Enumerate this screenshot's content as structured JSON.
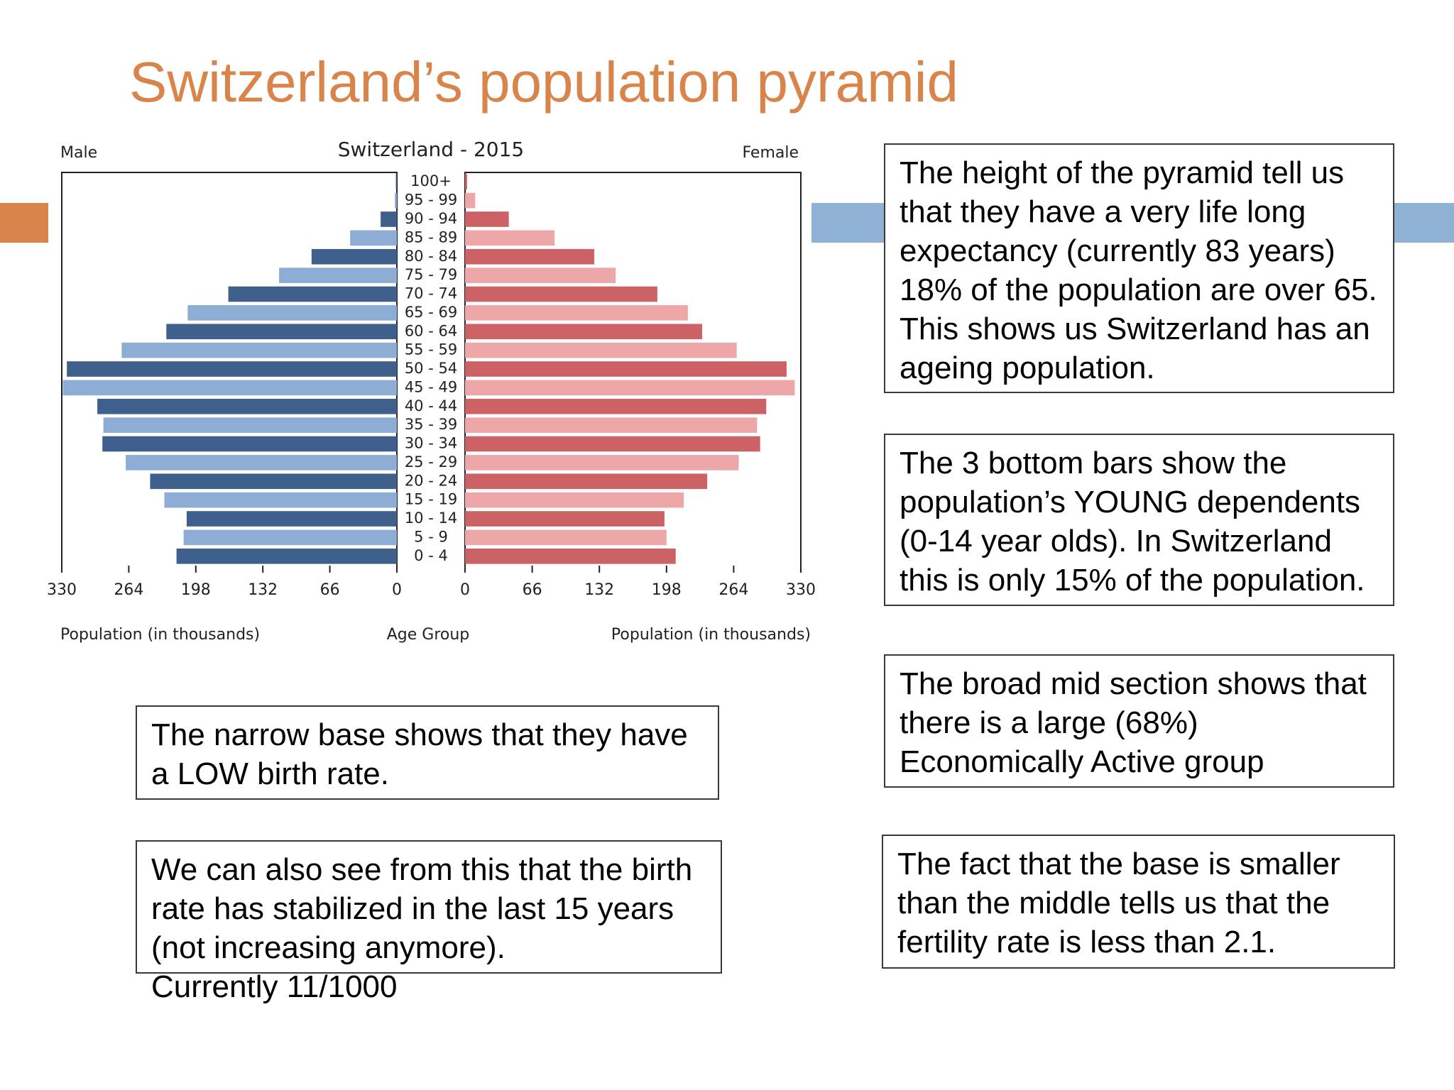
{
  "slide": {
    "title": "Switzerland’s population pyramid",
    "accent_left_color": "#d9844a",
    "accent_right_color": "#8fb1d3"
  },
  "notes": {
    "height": "The height of the pyramid tell us that they have a very life long expectancy (currently 83 years)\n18% of the population are over 65.\nThis shows us Switzerland has an ageing population.",
    "young": "The 3 bottom bars show the population’s YOUNG dependents (0-14 year olds). In Switzerland this is only 15% of the population.",
    "mid": "The broad mid section shows that there is a large (68%) Economically Active group",
    "base": "The narrow base shows that they have a LOW birth rate.",
    "birth": "We can also see from this that the birth rate has stabilized in the last 15 years (not increasing anymore).\nCurrently 11/1000",
    "fertility": "The fact that the base is smaller than the middle tells us that the fertility rate is less than 2.1."
  },
  "chart_data": {
    "type": "bar",
    "orientation": "horizontal-pyramid",
    "title": "Switzerland - 2015",
    "left_label": "Male",
    "right_label": "Female",
    "xlabel_left": "Population (in thousands)",
    "xlabel_center": "Age Group",
    "xlabel_right": "Population (in thousands)",
    "xlim": [
      0,
      330
    ],
    "ticks": [
      330,
      264,
      198,
      132,
      66,
      0
    ],
    "categories": [
      "100+",
      "95 - 99",
      "90 - 94",
      "85 - 89",
      "80 - 84",
      "75 - 79",
      "70 - 74",
      "65 - 69",
      "60 - 64",
      "55 - 59",
      "50 - 54",
      "45 - 49",
      "40 - 44",
      "35 - 39",
      "30 - 34",
      "25 - 29",
      "20 - 24",
      "15 - 19",
      "10 - 14",
      "5 - 9",
      "0 - 4"
    ],
    "series": [
      {
        "name": "Male",
        "values": [
          1,
          2,
          16,
          46,
          84,
          116,
          166,
          206,
          227,
          271,
          325,
          329,
          295,
          289,
          290,
          267,
          243,
          229,
          207,
          210,
          217
        ]
      },
      {
        "name": "Female",
        "values": [
          2,
          10,
          43,
          88,
          127,
          148,
          189,
          219,
          233,
          267,
          316,
          324,
          296,
          287,
          290,
          269,
          238,
          215,
          196,
          198,
          207
        ]
      }
    ],
    "colors": {
      "male_dark": "#3f5f8c",
      "male_light": "#8eadd4",
      "female_dark": "#cc6266",
      "female_light": "#eea7a8"
    },
    "grid": false
  }
}
